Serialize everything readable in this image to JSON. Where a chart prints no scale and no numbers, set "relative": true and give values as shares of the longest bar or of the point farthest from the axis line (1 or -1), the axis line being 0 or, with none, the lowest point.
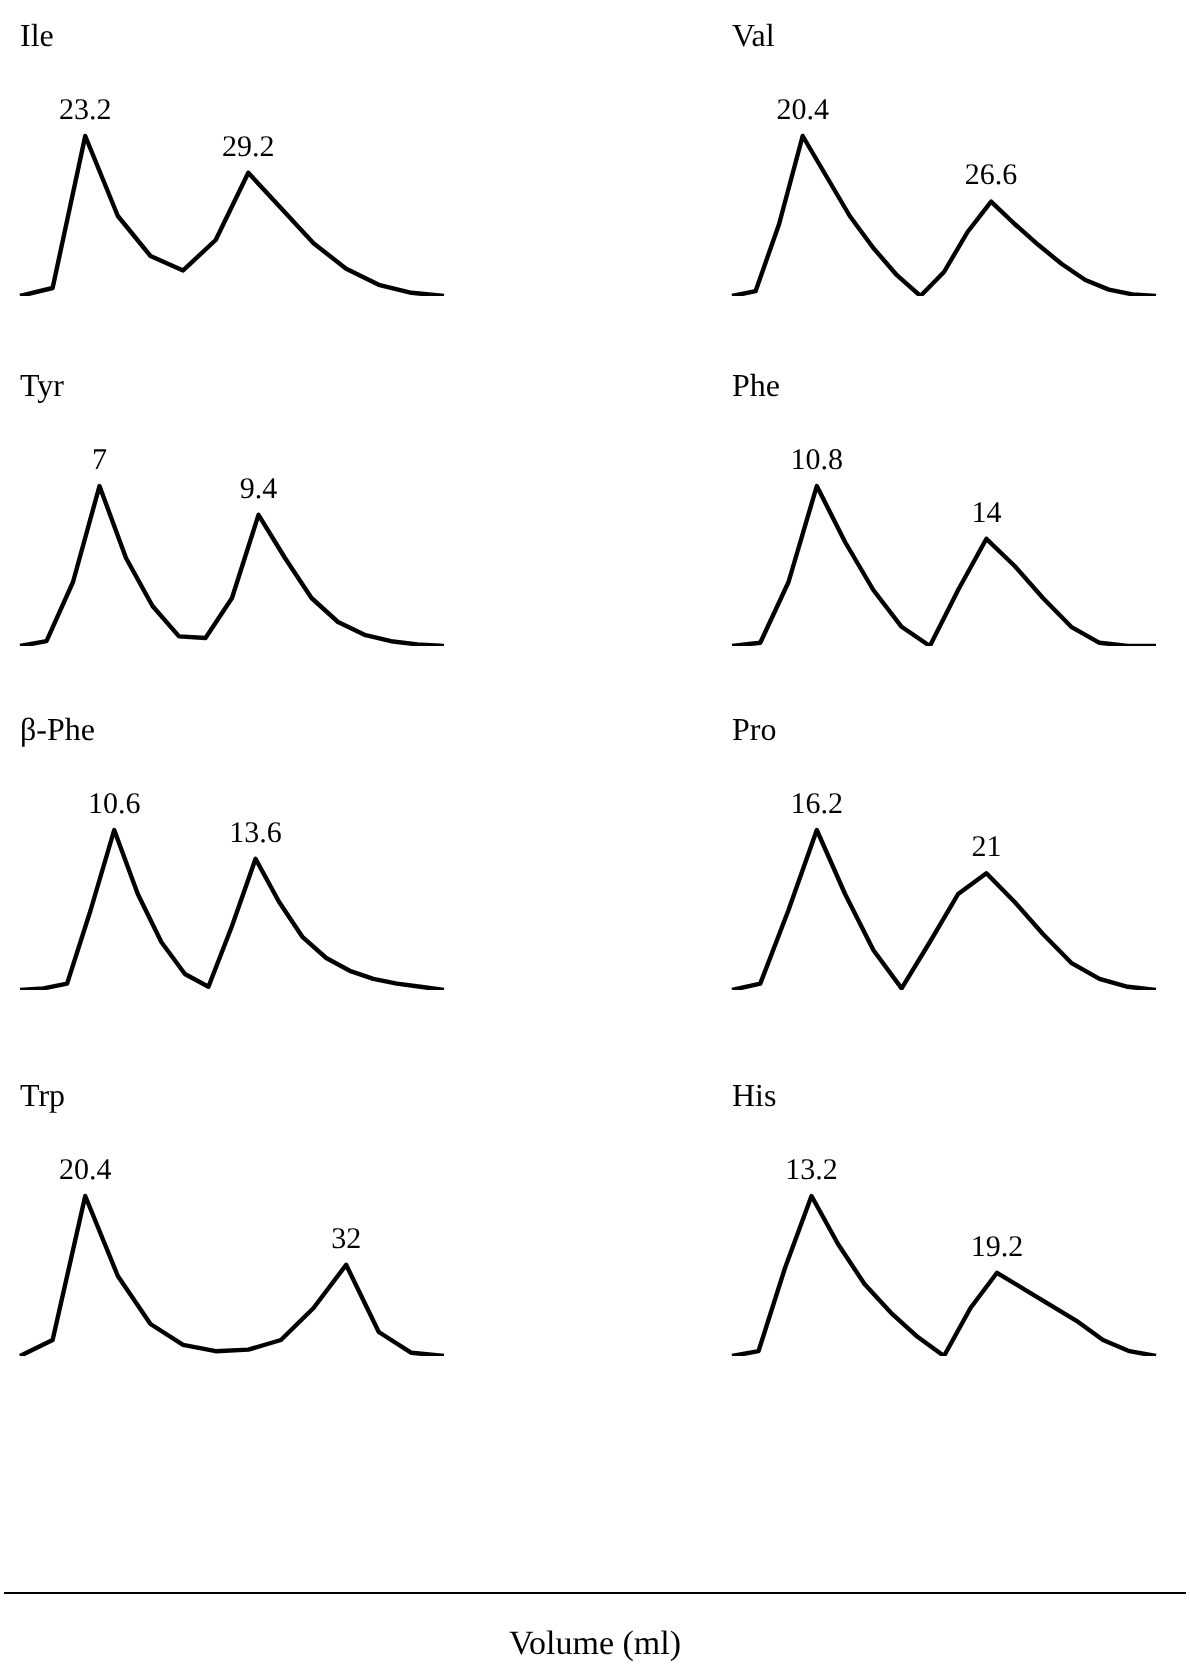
{
  "chart_data": [
    {
      "type": "line",
      "title": "Ile",
      "relative": true,
      "tick_labels": false,
      "color": "#000000",
      "categories": [
        null,
        null,
        null,
        null,
        null,
        null,
        null,
        null,
        null,
        null,
        null,
        null,
        null,
        null
      ],
      "values": [
        0,
        0.05,
        1,
        0.5,
        0.25,
        0.16,
        0.35,
        0.77,
        0.55,
        0.33,
        0.17,
        0.07,
        0.02,
        0
      ],
      "annotations": [
        "23.2",
        "29.2"
      ]
    },
    {
      "type": "line",
      "title": "Val",
      "relative": true,
      "tick_labels": false,
      "color": "#000000",
      "categories": [
        null,
        null,
        null,
        null,
        null,
        null,
        null,
        null,
        null,
        null,
        null,
        null,
        null,
        null,
        null,
        null,
        null,
        null,
        null
      ],
      "values": [
        0,
        0.03,
        0.45,
        1,
        0.75,
        0.5,
        0.3,
        0.13,
        0,
        0.15,
        0.4,
        0.59,
        0.45,
        0.32,
        0.2,
        0.1,
        0.04,
        0.01,
        0
      ],
      "annotations": [
        "20.4",
        "26.6"
      ]
    },
    {
      "type": "line",
      "title": "Tyr",
      "relative": true,
      "tick_labels": false,
      "color": "#000000",
      "categories": [
        null,
        null,
        null,
        null,
        null,
        null,
        null,
        null,
        null,
        null,
        null,
        null,
        null,
        null,
        null,
        null,
        null
      ],
      "values": [
        0,
        0.03,
        0.4,
        1,
        0.55,
        0.25,
        0.06,
        0.05,
        0.3,
        0.82,
        0.55,
        0.3,
        0.15,
        0.07,
        0.03,
        0.01,
        0
      ],
      "annotations": [
        "7",
        "9.4"
      ]
    },
    {
      "type": "line",
      "title": "Phe",
      "relative": true,
      "tick_labels": false,
      "color": "#000000",
      "categories": [
        null,
        null,
        null,
        null,
        null,
        null,
        null,
        null,
        null,
        null,
        null,
        null,
        null,
        null,
        null,
        null
      ],
      "values": [
        0,
        0.02,
        0.4,
        1,
        0.65,
        0.35,
        0.12,
        0,
        0.35,
        0.67,
        0.5,
        0.3,
        0.12,
        0.02,
        0,
        0
      ],
      "annotations": [
        "10.8",
        "14"
      ]
    },
    {
      "type": "line",
      "title": "β-Phe",
      "relative": true,
      "tick_labels": false,
      "color": "#000000",
      "categories": [
        null,
        null,
        null,
        null,
        null,
        null,
        null,
        null,
        null,
        null,
        null,
        null,
        null,
        null,
        null,
        null,
        null,
        null,
        null
      ],
      "values": [
        0,
        0.01,
        0.04,
        0.5,
        1,
        0.6,
        0.3,
        0.1,
        0.02,
        0.4,
        0.82,
        0.55,
        0.33,
        0.2,
        0.12,
        0.07,
        0.04,
        0.02,
        0
      ],
      "annotations": [
        "10.6",
        "13.6"
      ]
    },
    {
      "type": "line",
      "title": "Pro",
      "relative": true,
      "tick_labels": false,
      "color": "#000000",
      "categories": [
        null,
        null,
        null,
        null,
        null,
        null,
        null,
        null,
        null,
        null,
        null,
        null,
        null,
        null,
        null,
        null
      ],
      "values": [
        0,
        0.04,
        0.5,
        1,
        0.6,
        0.25,
        0.01,
        0.3,
        0.6,
        0.73,
        0.55,
        0.35,
        0.17,
        0.07,
        0.02,
        0
      ],
      "annotations": [
        "16.2",
        "21"
      ]
    },
    {
      "type": "line",
      "title": "Trp",
      "relative": true,
      "tick_labels": false,
      "color": "#000000",
      "xlabel": "Volume (ml)",
      "categories": [
        null,
        null,
        null,
        null,
        null,
        null,
        null,
        null,
        null,
        null,
        null,
        null,
        null,
        null
      ],
      "values": [
        0,
        0.1,
        1,
        0.5,
        0.2,
        0.07,
        0.03,
        0.04,
        0.1,
        0.3,
        0.57,
        0.15,
        0.02,
        0
      ],
      "annotations": [
        "20.4",
        "32"
      ]
    },
    {
      "type": "line",
      "title": "His",
      "relative": true,
      "tick_labels": false,
      "color": "#000000",
      "categories": [
        null,
        null,
        null,
        null,
        null,
        null,
        null,
        null,
        null,
        null,
        null,
        null,
        null,
        null,
        null,
        null,
        null
      ],
      "values": [
        0,
        0.03,
        0.55,
        1,
        0.7,
        0.45,
        0.27,
        0.12,
        0,
        0.3,
        0.52,
        0.42,
        0.32,
        0.22,
        0.1,
        0.03,
        0
      ],
      "annotations": [
        "13.2",
        "19.2"
      ]
    }
  ]
}
